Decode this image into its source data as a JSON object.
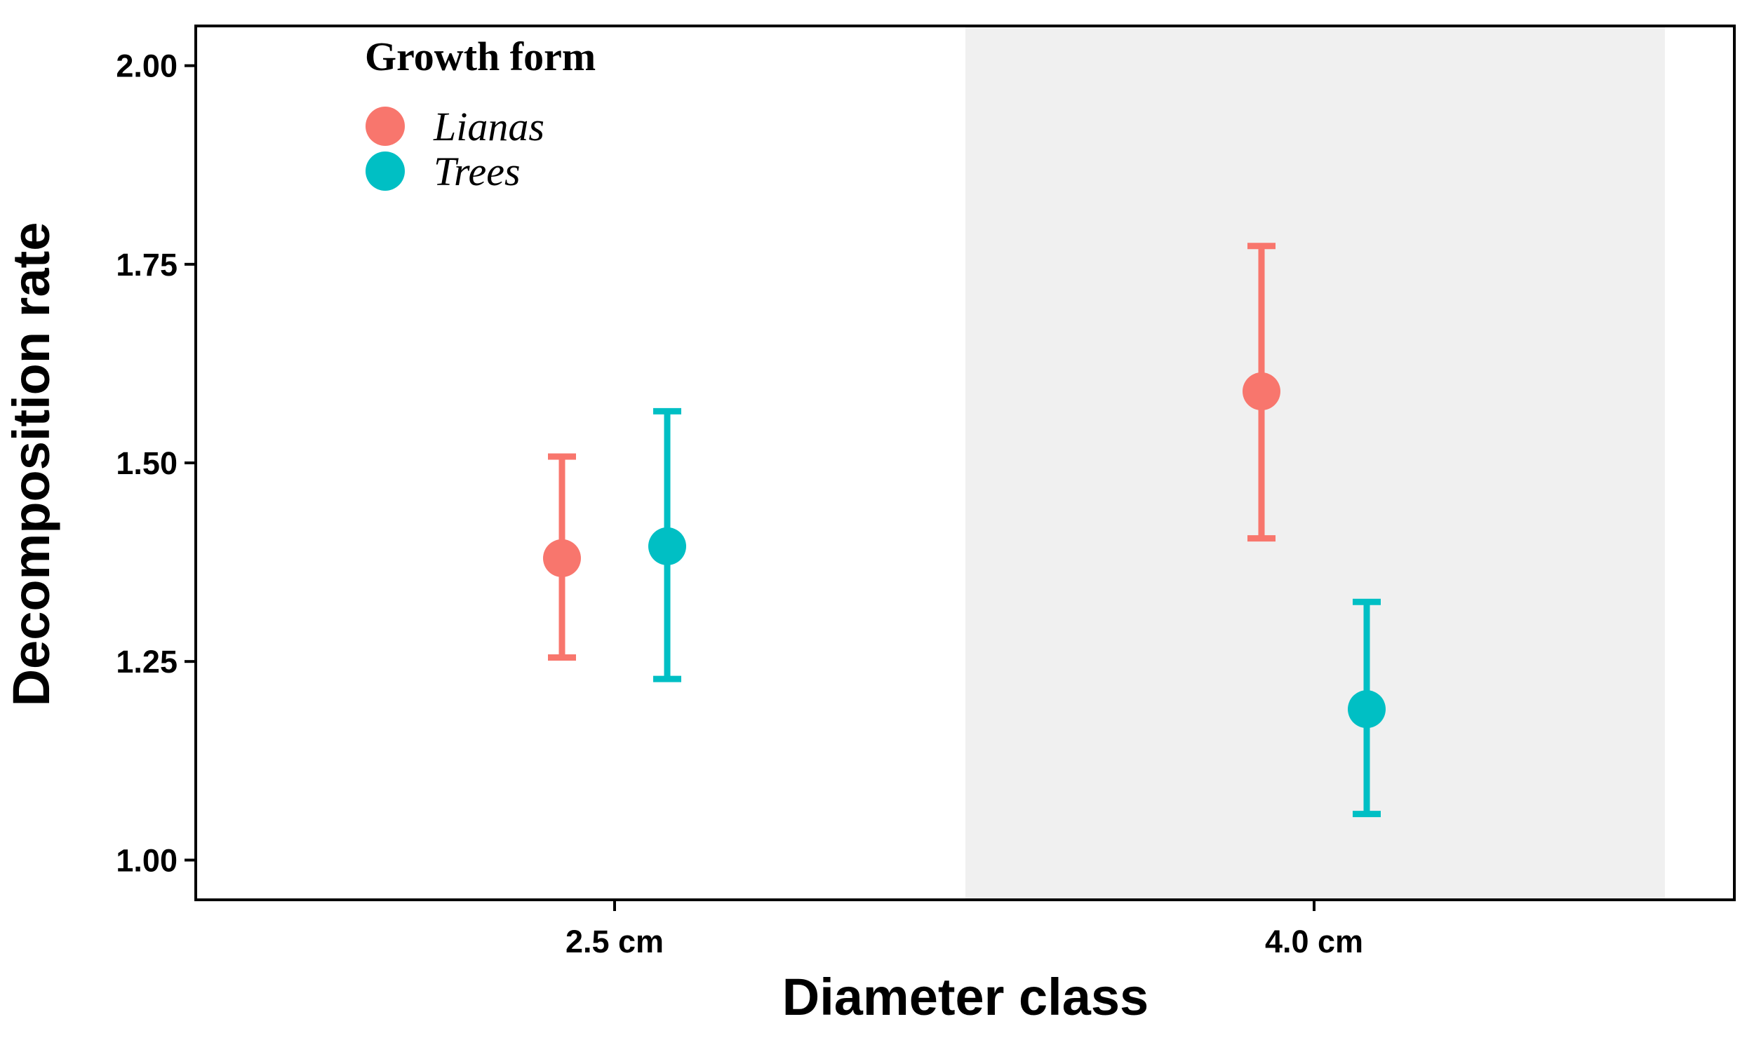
{
  "chart_data": {
    "type": "scatter",
    "title": "",
    "xlabel": "Diameter class",
    "ylabel": "Decomposition rate",
    "categories": [
      "2.5 cm",
      "4.0 cm"
    ],
    "ylim": [
      0.95,
      2.05
    ],
    "yticks": [
      "1.00",
      "1.25",
      "1.50",
      "1.75",
      "2.00"
    ],
    "grid": false,
    "shaded_category": "4.0 cm",
    "shade_color": "#f0f0f0",
    "legend": {
      "title": "Growth form",
      "placement": "top-left"
    },
    "series": [
      {
        "name": "Lianas",
        "color": "#f8766d",
        "points": [
          {
            "category": "2.5 cm",
            "y": 1.38,
            "ymin": 1.255,
            "ymax": 1.508
          },
          {
            "category": "4.0 cm",
            "y": 1.59,
            "ymin": 1.405,
            "ymax": 1.773
          }
        ]
      },
      {
        "name": "Trees",
        "color": "#00bfc4",
        "points": [
          {
            "category": "2.5 cm",
            "y": 1.395,
            "ymin": 1.228,
            "ymax": 1.565
          },
          {
            "category": "4.0 cm",
            "y": 1.19,
            "ymin": 1.058,
            "ymax": 1.325
          }
        ]
      }
    ]
  }
}
